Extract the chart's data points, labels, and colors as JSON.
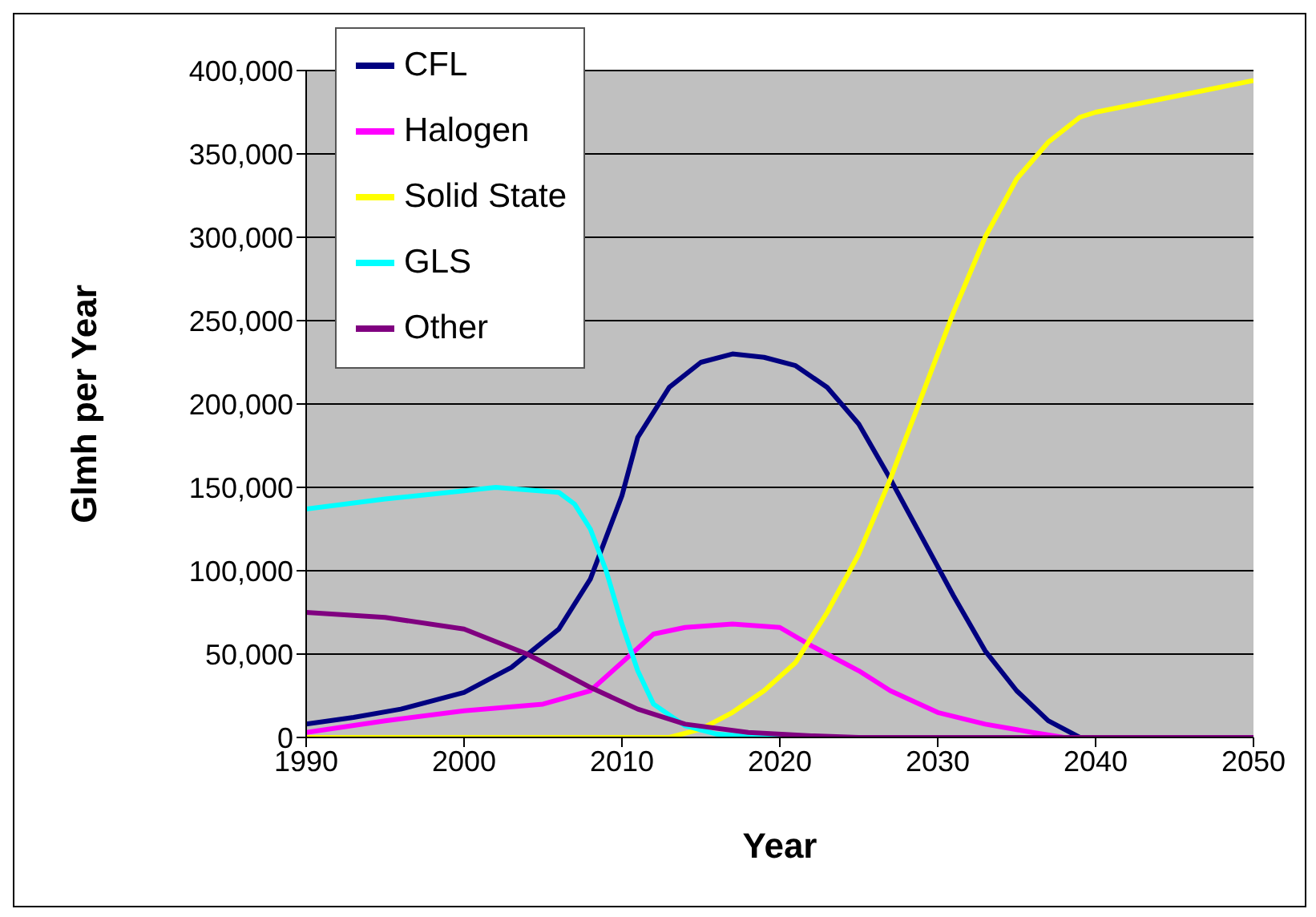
{
  "chart_data": {
    "type": "line",
    "xlabel": "Year",
    "ylabel": "Glmh per Year",
    "xlim": [
      1990,
      2050
    ],
    "xticks": [
      1990,
      2000,
      2010,
      2020,
      2030,
      2040,
      2050
    ],
    "ylim": [
      0,
      400000
    ],
    "yticks": [
      0,
      {
        "value": 50000,
        "label": "50,000"
      },
      {
        "value": 100000,
        "label": "100,000"
      },
      {
        "value": 150000,
        "label": "150,000"
      },
      {
        "value": 200000,
        "label": "200,000"
      },
      {
        "value": 250000,
        "label": "250,000"
      },
      {
        "value": 300000,
        "label": "300,000"
      },
      {
        "value": 350000,
        "label": "350,000"
      },
      {
        "value": 400000,
        "label": "400,000"
      }
    ],
    "grid": "y",
    "legend": "top left",
    "marker": "none",
    "line_style": "solid",
    "series": [
      {
        "name": "CFL",
        "color": "#000080",
        "x": [
          1990,
          1993,
          1996,
          2000,
          2003,
          2006,
          2008,
          2010,
          2011,
          2013,
          2015,
          2017,
          2019,
          2021,
          2023,
          2025,
          2027,
          2029,
          2031,
          2033,
          2035,
          2037,
          2039,
          2050
        ],
        "values": [
          8000,
          12000,
          17000,
          27000,
          42000,
          65000,
          95000,
          145000,
          180000,
          210000,
          225000,
          230000,
          228000,
          223000,
          210000,
          188000,
          155000,
          120000,
          85000,
          52000,
          28000,
          10000,
          0,
          0
        ]
      },
      {
        "name": "Halogen",
        "color": "#ff00ff",
        "x": [
          1990,
          1995,
          2000,
          2005,
          2008,
          2010,
          2012,
          2014,
          2017,
          2020,
          2022,
          2025,
          2027,
          2030,
          2033,
          2036,
          2038,
          2050
        ],
        "values": [
          3000,
          10000,
          16000,
          20000,
          28000,
          45000,
          62000,
          66000,
          68000,
          66000,
          55000,
          40000,
          28000,
          15000,
          8000,
          3000,
          0,
          0
        ]
      },
      {
        "name": "Solid State",
        "color": "#ffff00",
        "x": [
          1990,
          2013,
          2015,
          2017,
          2019,
          2021,
          2023,
          2025,
          2027,
          2029,
          2031,
          2033,
          2035,
          2037,
          2039,
          2040,
          2050
        ],
        "values": [
          0,
          0,
          5000,
          15000,
          28000,
          45000,
          75000,
          110000,
          155000,
          205000,
          255000,
          300000,
          335000,
          357000,
          372000,
          375000,
          394000
        ]
      },
      {
        "name": "GLS",
        "color": "#00ffff",
        "x": [
          1990,
          1995,
          2000,
          2002,
          2006,
          2007,
          2008,
          2009,
          2010,
          2011,
          2012,
          2014,
          2016,
          2019,
          2050
        ],
        "values": [
          137000,
          143000,
          148000,
          150000,
          147000,
          140000,
          125000,
          100000,
          68000,
          40000,
          20000,
          7000,
          2000,
          0,
          0
        ]
      },
      {
        "name": "Other",
        "color": "#800080",
        "x": [
          1990,
          1995,
          2000,
          2004,
          2008,
          2011,
          2014,
          2018,
          2022,
          2025,
          2050
        ],
        "values": [
          75000,
          72000,
          65000,
          50000,
          30000,
          17000,
          8000,
          3000,
          1000,
          0,
          0
        ]
      }
    ]
  }
}
